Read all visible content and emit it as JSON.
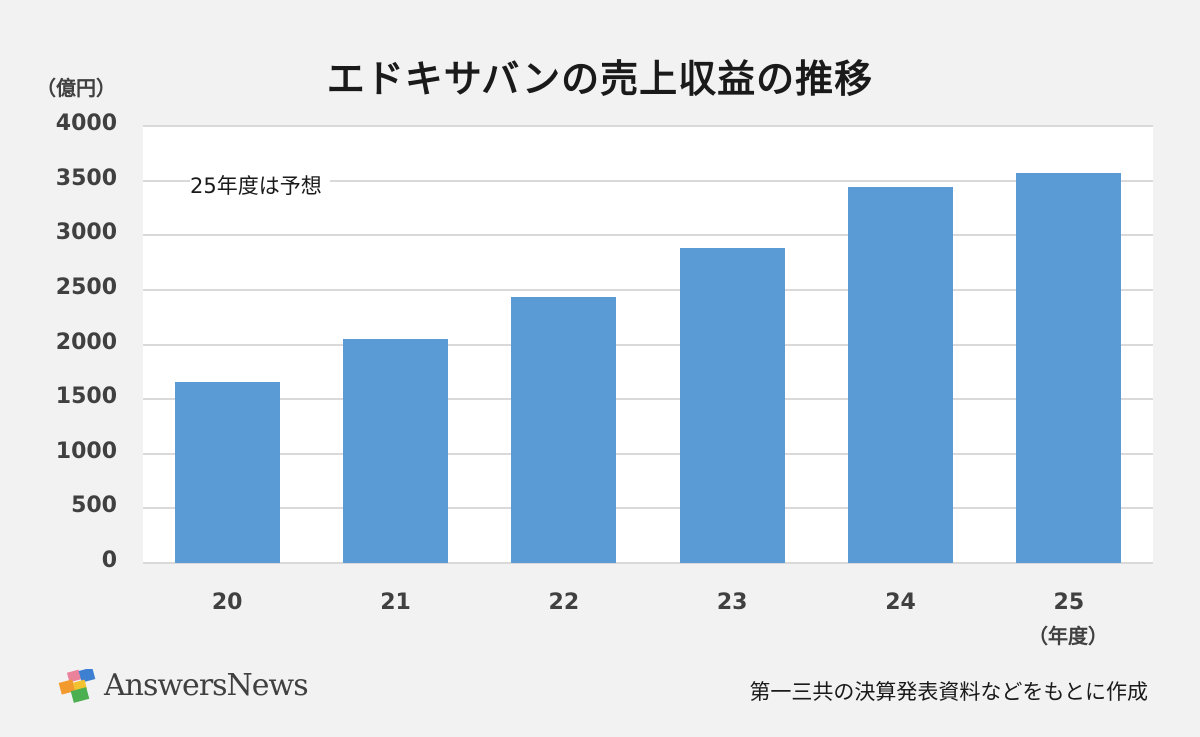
{
  "header": {
    "title": "エドキサバンの売上収益の推移",
    "unit": "（億円）"
  },
  "annotation": "25年度は予想",
  "x_unit": "（年度）",
  "footer": {
    "logo": "AnswersNews",
    "source": "第一三共の決算発表資料などをもとに作成"
  },
  "colors": {
    "bar": "#5b9bd5",
    "background": "#f2f2f2",
    "plot": "#ffffff",
    "grid": "#d9d9d9"
  },
  "chart_data": {
    "type": "bar",
    "title": "エドキサバンの売上収益の推移",
    "xlabel": "（年度）",
    "ylabel": "（億円）",
    "categories": [
      "20",
      "21",
      "22",
      "23",
      "24",
      "25"
    ],
    "values": [
      1657,
      2050,
      2435,
      2883,
      3442,
      3570
    ],
    "ylim": [
      0,
      4000
    ],
    "yticks": [
      "0",
      "500",
      "1000",
      "1500",
      "2000",
      "2500",
      "3000",
      "3500",
      "4000"
    ],
    "grid": true,
    "legend": null,
    "annotations": [
      "25年度は予想"
    ]
  }
}
